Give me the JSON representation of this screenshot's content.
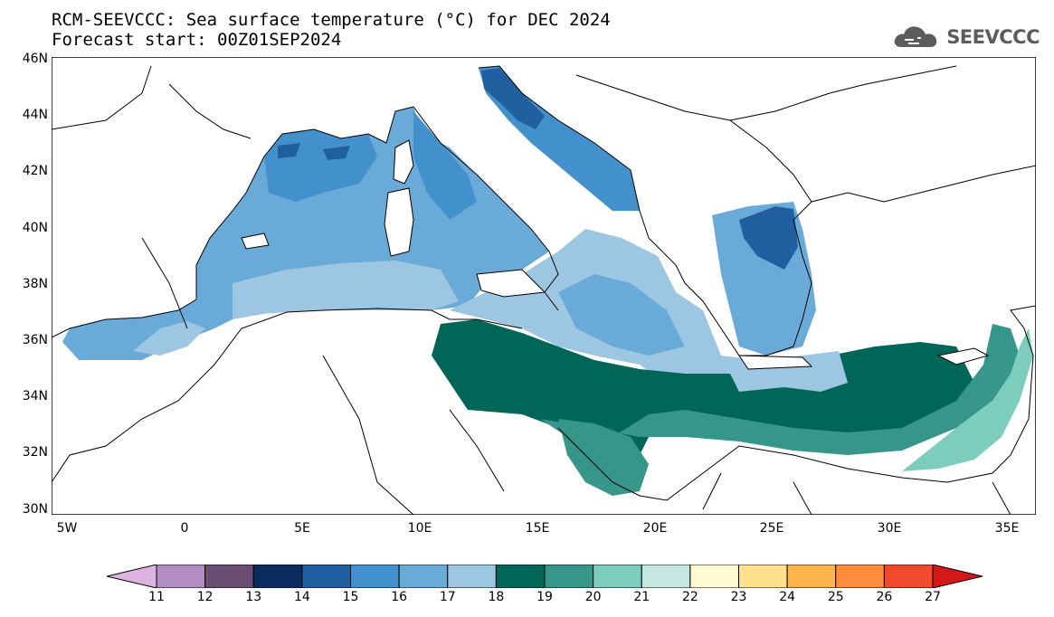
{
  "title": {
    "line1": "RCM-SEEVCCC: Sea surface temperature (°C) for DEC 2024",
    "line2": "Forecast start: 00Z01SEP2024"
  },
  "logo": {
    "text": "SEEVCCC",
    "icon": "cloud-icon",
    "color": "#5c5c5c"
  },
  "map": {
    "variable": "Sea surface temperature",
    "unit": "°C",
    "lat_range": [
      30,
      46
    ],
    "lon_range": [
      -5.8,
      36.5
    ],
    "lat_labels": [
      "46N",
      "44N",
      "42N",
      "40N",
      "38N",
      "36N",
      "34N",
      "32N",
      "30N"
    ],
    "lon_labels": [
      "5W",
      "0",
      "5E",
      "10E",
      "15E",
      "20E",
      "25E",
      "30E",
      "35E"
    ],
    "regions_temperature_class": {
      "northern_adriatic": 14,
      "northern_aegean": 15,
      "gulf_of_lion": 15,
      "western_basin": 16,
      "tyrrhenian": 16,
      "ionian_central": 17,
      "libyan_coast": 19,
      "levantine_south": 20,
      "levantine_east_coast": 21
    }
  },
  "colorbar": {
    "labels": [
      "11",
      "12",
      "13",
      "14",
      "15",
      "16",
      "17",
      "18",
      "19",
      "20",
      "21",
      "22",
      "23",
      "24",
      "25",
      "26",
      "27"
    ],
    "colors": [
      "#dcb2e0",
      "#b48cc4",
      "#6a4e74",
      "#0a2c5e",
      "#2060a0",
      "#4290cc",
      "#6aaad8",
      "#9cc6e2",
      "#006658",
      "#36968a",
      "#7ccdbd",
      "#c4e8e0",
      "#fffad0",
      "#ffe08c",
      "#ffb44c",
      "#ff8c3c",
      "#f04a2c",
      "#d41818"
    ]
  }
}
